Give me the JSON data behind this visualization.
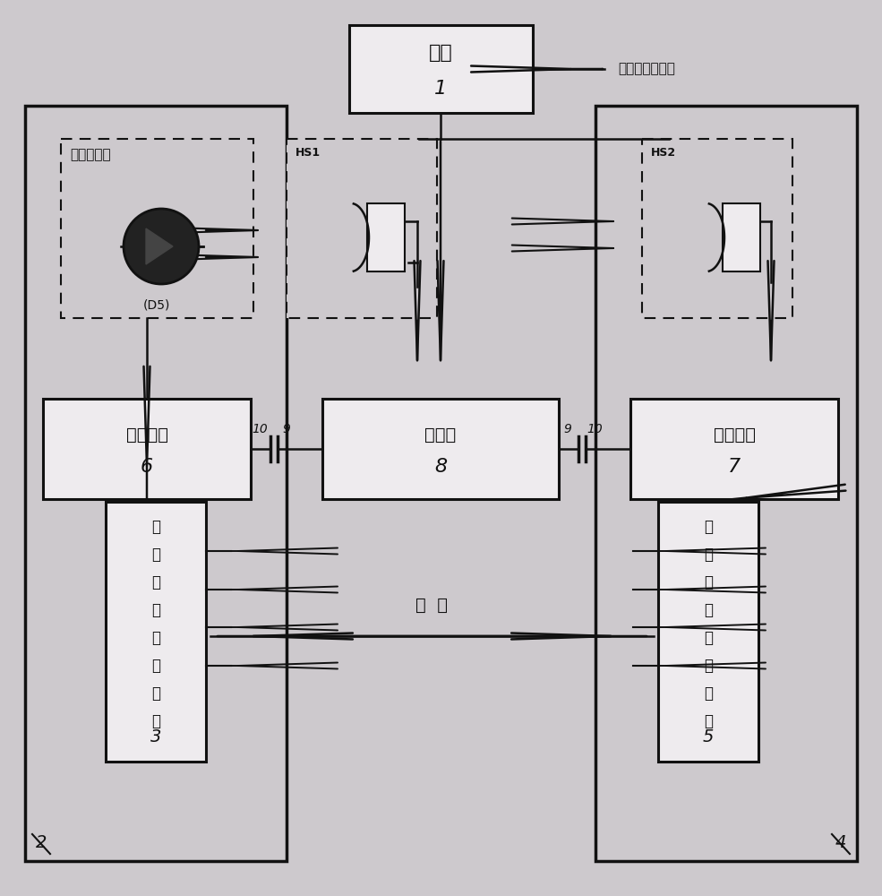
{
  "bg": "#cdc9cd",
  "lc": "#111111",
  "bf": "#eeebee",
  "texts": {
    "host_label": "主机",
    "host_num": "1",
    "gate_signal": "门机信号输出端",
    "left_box_label": "左管电盒",
    "left_box_num": "6",
    "right_box_label": "右管电盒",
    "right_box_num": "7",
    "charge_label": "充电盒",
    "charge_num": "8",
    "receiver_chars": [
      "光",
      "幕",
      "保",
      "护",
      "器",
      "接",
      "收",
      "端"
    ],
    "receiver_num": "3",
    "emitter_chars": [
      "光",
      "幕",
      "保",
      "护",
      "器",
      "发",
      "射",
      "端"
    ],
    "emitter_num": "5",
    "ir_label": "红外发射头",
    "d5": "(D5)",
    "move": "移  动",
    "hs1": "HS1",
    "hs2": "HS2",
    "num2": "2",
    "num4": "4",
    "num10_l": "10",
    "num9_l": "9",
    "num9_r": "9",
    "num10_r": "10"
  }
}
